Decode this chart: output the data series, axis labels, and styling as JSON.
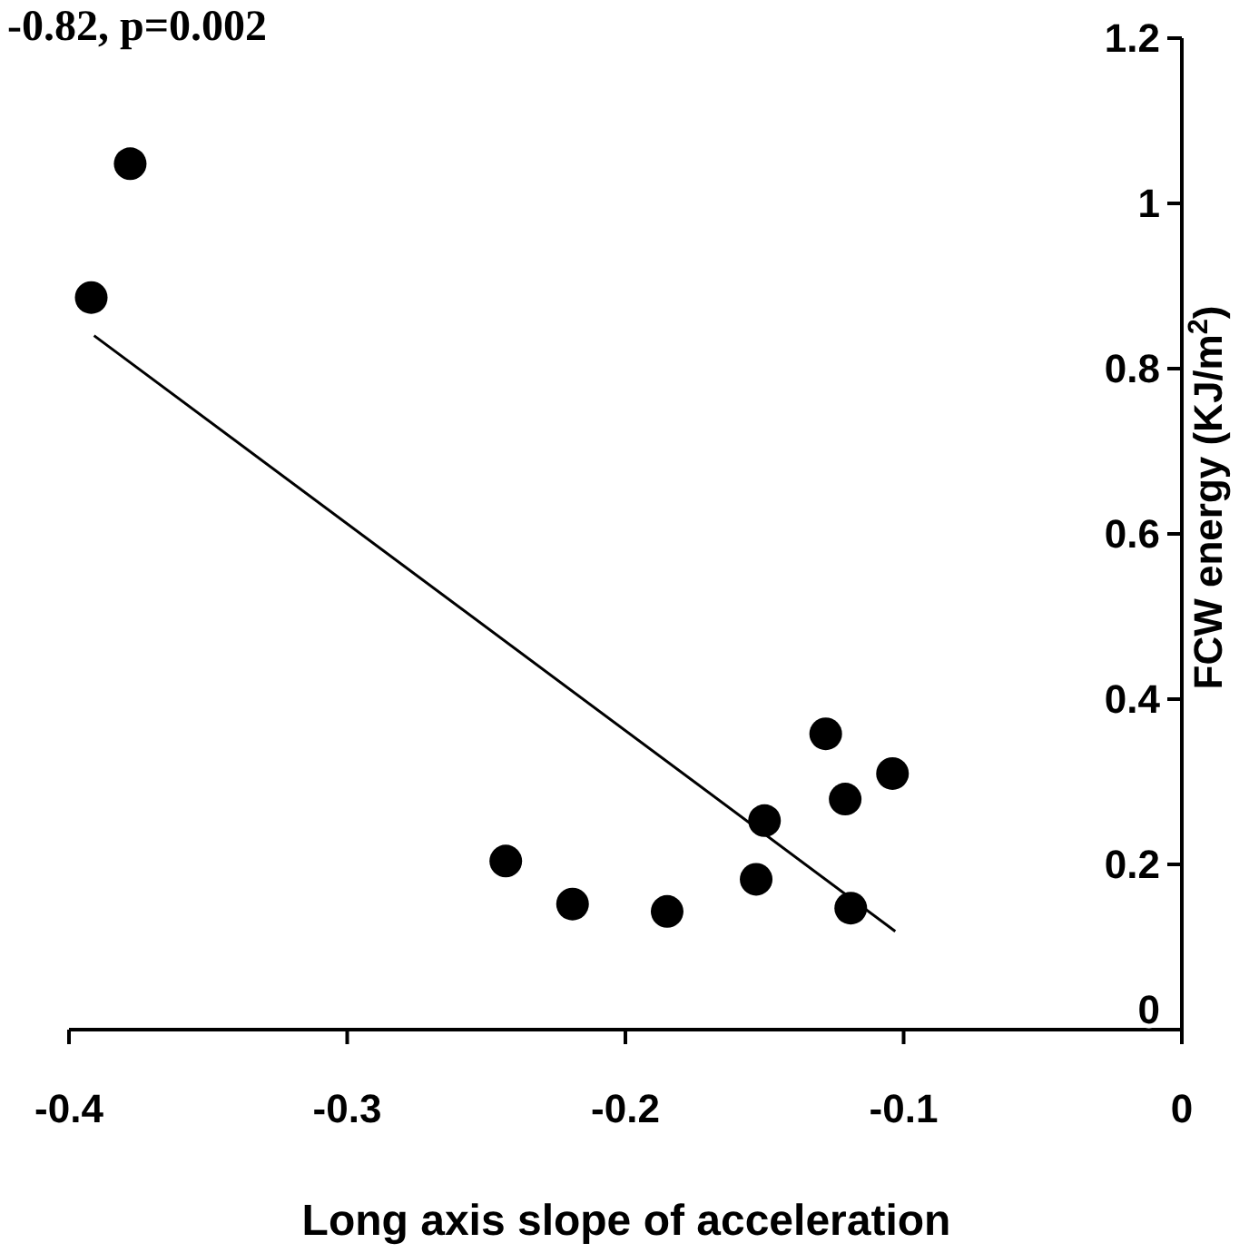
{
  "chart_data": {
    "type": "scatter",
    "title": "-0.82, p=0.002",
    "xlabel": "Long axis  slope of acceleration",
    "ylabel": "FCW energy (KJ/m$^{2}$)",
    "xlim": [
      -0.4,
      0
    ],
    "xticks": [
      -0.4,
      -0.3,
      -0.2,
      -0.1,
      0
    ],
    "ylim": [
      0,
      1.2
    ],
    "yticks": [
      0,
      0.2,
      0.4,
      0.6,
      0.8,
      1,
      1.2
    ],
    "marker": "circle",
    "grid": false,
    "series": [
      {
        "color": "#000000",
        "x": [
          -0.392,
          -0.378,
          -0.243,
          -0.219,
          -0.185,
          -0.153,
          -0.15,
          -0.119,
          -0.121,
          -0.128,
          -0.104
        ],
        "values": [
          0.886,
          1.048,
          0.204,
          0.152,
          0.143,
          0.182,
          0.253,
          0.147,
          0.279,
          0.358,
          0.31
        ]
      },
      {
        "type": "line",
        "marker": "none",
        "color": "#000000",
        "x": [
          -0.391,
          -0.103
        ],
        "values": [
          0.84,
          0.119
        ]
      }
    ]
  }
}
